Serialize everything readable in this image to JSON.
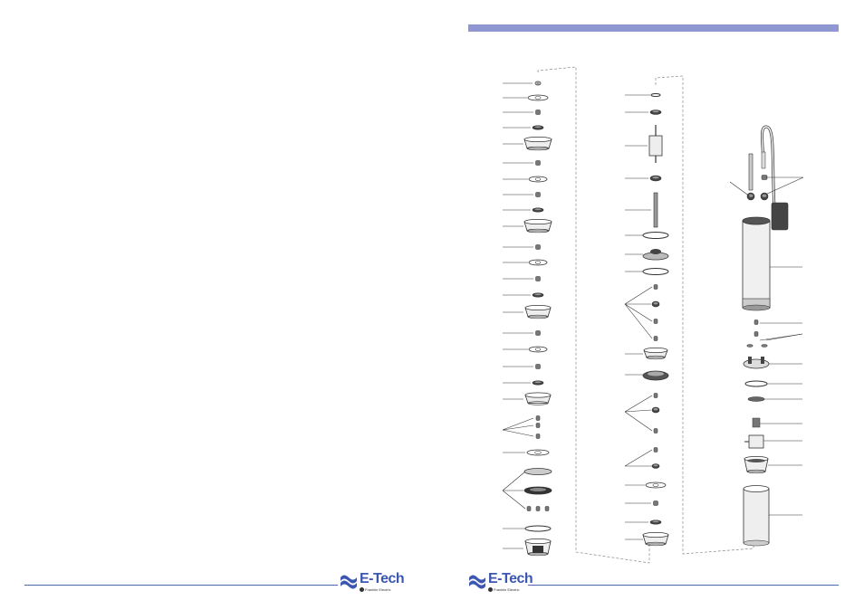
{
  "page": {
    "header_bar_color": "#8e97d2",
    "footer_line_color": "#4a64b4"
  },
  "logo": {
    "brand": "E-Tech",
    "subline": "Franklin Electric",
    "brand_color": "#3b57b2"
  },
  "diagram": {
    "type": "exploded-parts-view",
    "columns": [
      "pump-stages-column",
      "intermediate-stages-column",
      "motor-column"
    ]
  }
}
